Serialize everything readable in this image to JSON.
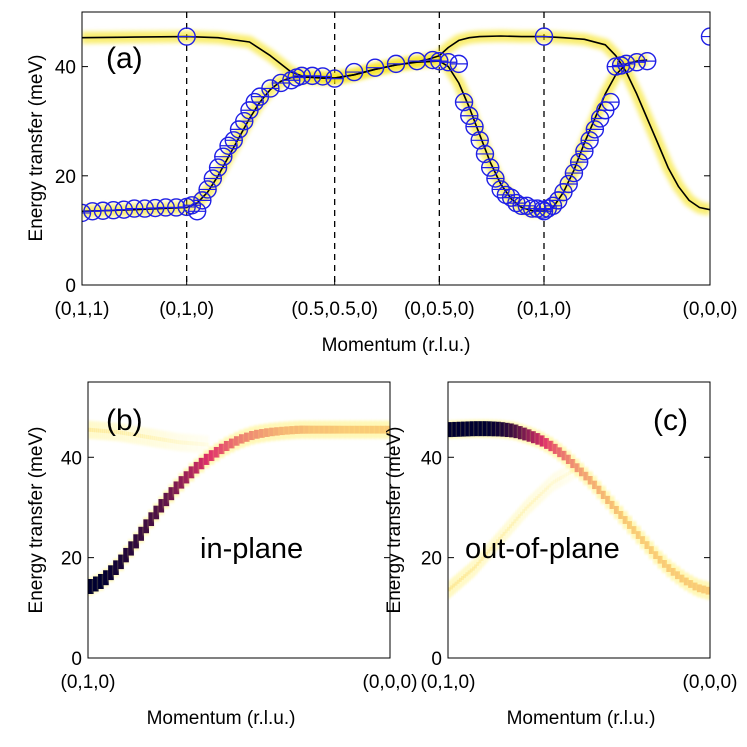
{
  "colors": {
    "data_marker": "#1f1fe6",
    "model_line": "#000000",
    "glow": "#f5e000",
    "intensity_low": "#fff27a",
    "intensity_mid": "#e0306a",
    "intensity_high": "#000030"
  },
  "chart_data": [
    {
      "id": "a",
      "type": "line",
      "panel_label": "(a)",
      "xlabel": "Momentum (r.l.u.)",
      "ylabel": "Energy transfer (meV)",
      "ylim": [
        0,
        50
      ],
      "yticks": [
        0,
        20,
        40
      ],
      "xlim": [
        0,
        6
      ],
      "xticks": [
        {
          "x": 0,
          "label": "(0,1,1)"
        },
        {
          "x": 1,
          "label": "(0,1,0)"
        },
        {
          "x": 2.414,
          "label": "(0.5,0.5,0)"
        },
        {
          "x": 3.414,
          "label": "(0,0.5,0)"
        },
        {
          "x": 4.414,
          "label": "(0,1,0)"
        },
        {
          "x": 6,
          "label": "(0,0,0)"
        }
      ],
      "vlines": [
        1,
        2.414,
        3.414,
        4.414
      ],
      "series": [
        {
          "name": "lower branch model",
          "style": "line",
          "x": [
            0,
            0.5,
            1.0,
            1.1,
            1.2,
            1.3,
            1.4,
            1.5,
            1.6,
            1.7,
            1.8,
            1.9,
            2.0,
            2.1,
            2.2,
            2.3,
            2.414,
            2.6,
            2.8,
            3.0,
            3.2,
            3.414,
            3.5,
            3.6,
            3.7,
            3.8,
            3.9,
            4.0,
            4.1,
            4.2,
            4.3,
            4.414,
            4.5,
            4.6,
            4.7,
            4.8,
            4.9,
            5.0,
            5.1,
            5.2,
            5.3,
            5.4
          ],
          "y": [
            13.5,
            13.8,
            14.2,
            15.0,
            17.0,
            20.0,
            23.5,
            27.0,
            30.5,
            33.5,
            35.8,
            37.3,
            38.0,
            38.1,
            38.0,
            37.9,
            37.9,
            38.5,
            39.5,
            40.3,
            40.8,
            41.0,
            40.0,
            37.0,
            32.5,
            27.5,
            22.5,
            18.5,
            15.8,
            14.2,
            13.6,
            13.5,
            14.2,
            17.0,
            21.0,
            26.0,
            30.5,
            35.0,
            38.5,
            40.5,
            41.0,
            41.2
          ]
        },
        {
          "name": "upper branch model",
          "style": "line",
          "x": [
            0,
            0.5,
            1.0,
            1.3,
            1.6,
            1.8,
            2.0,
            2.1,
            2.2,
            2.3,
            2.414,
            2.6,
            2.8,
            3.0,
            3.2,
            3.3,
            3.414,
            3.5,
            3.6,
            3.7,
            3.8,
            4.0,
            4.2,
            4.414,
            4.6,
            4.8,
            5.0,
            5.1,
            5.2,
            5.3,
            5.4,
            5.5,
            5.6,
            5.7,
            5.8,
            5.9,
            6.0
          ],
          "y": [
            45.3,
            45.4,
            45.5,
            45.3,
            44.5,
            42.0,
            39.0,
            38.3,
            38.1,
            37.9,
            37.9,
            38.5,
            39.5,
            40.3,
            40.9,
            41.3,
            42.0,
            43.5,
            44.8,
            45.3,
            45.5,
            45.6,
            45.5,
            45.5,
            45.3,
            45.0,
            44.0,
            42.0,
            39.0,
            35.0,
            30.5,
            26.0,
            21.5,
            18.0,
            15.5,
            14.2,
            13.8
          ]
        },
        {
          "name": "measured dispersion",
          "style": "markers",
          "x": [
            0,
            0.1,
            0.2,
            0.3,
            0.4,
            0.5,
            0.6,
            0.7,
            0.8,
            0.9,
            1.0,
            1.05,
            1.1,
            1.15,
            1.2,
            1.25,
            1.3,
            1.35,
            1.4,
            1.45,
            1.5,
            1.55,
            1.6,
            1.65,
            1.7,
            1.8,
            1.9,
            2.0,
            2.05,
            2.1,
            2.2,
            2.3,
            2.414,
            2.6,
            2.8,
            3.0,
            3.2,
            3.35,
            3.414,
            3.5,
            3.6,
            3.65,
            3.7,
            3.75,
            3.8,
            3.85,
            3.9,
            3.95,
            4.0,
            4.05,
            4.1,
            4.15,
            4.2,
            4.25,
            4.3,
            4.35,
            4.4,
            4.414,
            4.45,
            4.5,
            4.55,
            4.6,
            4.65,
            4.7,
            4.75,
            4.8,
            4.85,
            4.9,
            4.95,
            5.0,
            5.05,
            5.1,
            5.15,
            5.2,
            5.3,
            5.4,
            1.0,
            4.414,
            6.0
          ],
          "y": [
            13.2,
            13.5,
            13.6,
            13.7,
            13.8,
            14.0,
            14.0,
            14.1,
            14.2,
            14.2,
            14.3,
            14.6,
            13.5,
            15.5,
            17.5,
            19.5,
            21.5,
            23.5,
            25.5,
            26.5,
            28.5,
            30.0,
            32.0,
            33.5,
            34.5,
            36.0,
            37.0,
            37.5,
            38.0,
            38.3,
            38.3,
            38.2,
            37.8,
            39.0,
            39.8,
            40.5,
            41.0,
            41.2,
            41.0,
            40.8,
            40.5,
            33.5,
            31.0,
            29.0,
            26.5,
            24.0,
            21.5,
            19.5,
            17.5,
            16.5,
            16.0,
            15.0,
            14.5,
            14.5,
            14.0,
            14.0,
            13.8,
            13.5,
            14.0,
            14.5,
            15.5,
            17.0,
            18.5,
            20.5,
            22.5,
            24.5,
            26.5,
            28.5,
            30.5,
            32.0,
            33.5,
            40.0,
            40.2,
            40.5,
            40.8,
            41.0,
            45.5,
            45.5,
            45.5
          ]
        }
      ]
    },
    {
      "id": "b",
      "type": "heatmap",
      "panel_label": "(b)",
      "annotation": "in-plane",
      "xlabel": "Momentum (r.l.u.)",
      "ylabel": "Energy transfer (meV)",
      "ylim": [
        0,
        55
      ],
      "yticks": [
        0,
        20,
        40
      ],
      "xlim": [
        0,
        1
      ],
      "xticks": [
        {
          "x": 0,
          "label": "(0,1,0)"
        },
        {
          "x": 1,
          "label": "(0,0,0)"
        }
      ],
      "main_branch": {
        "x": [
          0,
          0.05,
          0.1,
          0.15,
          0.2,
          0.25,
          0.3,
          0.35,
          0.4,
          0.45,
          0.5,
          0.55,
          0.6,
          0.65,
          0.7,
          0.75,
          0.8,
          0.85,
          0.9,
          0.95,
          1.0
        ],
        "y": [
          14.0,
          15.5,
          18.5,
          22.5,
          27.0,
          31.0,
          34.5,
          37.5,
          40.0,
          42.0,
          43.5,
          44.5,
          45.0,
          45.3,
          45.5,
          45.5,
          45.5,
          45.5,
          45.5,
          45.5,
          45.5
        ],
        "intensity": [
          1.0,
          1.0,
          0.95,
          0.9,
          0.85,
          0.8,
          0.7,
          0.6,
          0.5,
          0.4,
          0.3,
          0.25,
          0.2,
          0.15,
          0.15,
          0.12,
          0.12,
          0.1,
          0.1,
          0.1,
          0.1
        ]
      },
      "faint_branch": {
        "x": [
          0,
          0.1,
          0.2,
          0.3,
          0.4
        ],
        "y": [
          45.5,
          45.0,
          44.0,
          43.0,
          42.5
        ],
        "intensity": [
          0.05,
          0.04,
          0.03,
          0.02,
          0.01
        ]
      }
    },
    {
      "id": "c",
      "type": "heatmap",
      "panel_label": "(c)",
      "annotation": "out-of-plane",
      "xlabel": "Momentum (r.l.u.)",
      "ylabel": "Energy transfer (meV)",
      "ylim": [
        0,
        55
      ],
      "yticks": [
        0,
        20,
        40
      ],
      "xlim": [
        0,
        1
      ],
      "xticks": [
        {
          "x": 0,
          "label": "(0,1,0)"
        },
        {
          "x": 1,
          "label": "(0,0,0)"
        }
      ],
      "main_branch": {
        "x": [
          0,
          0.05,
          0.1,
          0.15,
          0.2,
          0.25,
          0.3,
          0.35,
          0.4,
          0.45,
          0.5,
          0.55,
          0.6,
          0.65,
          0.7,
          0.75,
          0.8,
          0.85,
          0.9,
          0.95,
          1.0
        ],
        "y": [
          45.5,
          45.6,
          45.7,
          45.7,
          45.6,
          45.3,
          44.5,
          43.5,
          42.0,
          40.0,
          37.5,
          35.0,
          32.0,
          29.0,
          26.0,
          23.0,
          20.0,
          17.5,
          15.5,
          14.0,
          13.3
        ],
        "intensity": [
          1.0,
          1.0,
          1.0,
          1.0,
          0.95,
          0.85,
          0.7,
          0.55,
          0.4,
          0.3,
          0.22,
          0.18,
          0.15,
          0.12,
          0.1,
          0.1,
          0.1,
          0.1,
          0.1,
          0.1,
          0.1
        ]
      },
      "faint_branch": {
        "x": [
          0,
          0.1,
          0.2,
          0.3,
          0.4,
          0.5
        ],
        "y": [
          13.5,
          18.0,
          24.0,
          30.0,
          35.0,
          38.0
        ],
        "intensity": [
          0.06,
          0.05,
          0.04,
          0.03,
          0.02,
          0.01
        ]
      }
    }
  ]
}
